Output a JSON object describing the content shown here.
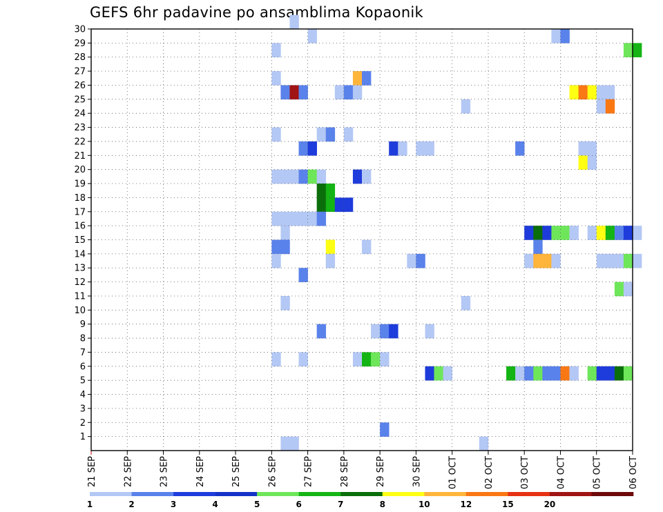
{
  "chart_data": {
    "type": "heatmap",
    "title": "GEFS 6hr padavine po ansamblima Kopaonik",
    "xlabel": "",
    "ylabel": "",
    "x_unit": "6-hour step",
    "x_tick_labels": [
      "21 SEP",
      "22 SEP",
      "23 SEP",
      "24 SEP",
      "25 SEP",
      "26 SEP",
      "27 SEP",
      "28 SEP",
      "29 SEP",
      "30 SEP",
      "01 OCT",
      "02 OCT",
      "03 OCT",
      "04 OCT",
      "05 OCT",
      "06 OCT"
    ],
    "y_range": [
      0,
      30
    ],
    "y_tick_labels": [
      "1",
      "2",
      "3",
      "4",
      "5",
      "6",
      "7",
      "8",
      "9",
      "10",
      "11",
      "12",
      "13",
      "14",
      "15",
      "16",
      "17",
      "18",
      "19",
      "20",
      "21",
      "22",
      "23",
      "24",
      "25",
      "26",
      "27",
      "28",
      "29",
      "30"
    ],
    "grid": true,
    "colorbar": {
      "levels": [
        "1",
        "2",
        "3",
        "4",
        "5",
        "6",
        "7",
        "8",
        "10",
        "12",
        "15",
        "20"
      ],
      "colors": [
        "#b4c8f5",
        "#5a82eb",
        "#1e3cdc",
        "#1432c8",
        "#6ee65a",
        "#14b414",
        "#0a6e0a",
        "#ffff14",
        "#ffb43c",
        "#fa7814",
        "#e63214",
        "#a01414",
        "#6e0a0a"
      ]
    },
    "cells": [
      {
        "m": 30,
        "t": 22,
        "c": 0
      },
      {
        "m": 29,
        "t": 24,
        "c": 0
      },
      {
        "m": 29,
        "t": 51,
        "c": 0
      },
      {
        "m": 29,
        "t": 52,
        "c": 1
      },
      {
        "m": 28,
        "t": 20,
        "c": 0
      },
      {
        "m": 28,
        "t": 59,
        "c": 4
      },
      {
        "m": 28,
        "t": 60,
        "c": 5
      },
      {
        "m": 26,
        "t": 20,
        "c": 0
      },
      {
        "m": 26,
        "t": 29,
        "c": 8
      },
      {
        "m": 26,
        "t": 30,
        "c": 1
      },
      {
        "m": 25,
        "t": 21,
        "c": 1
      },
      {
        "m": 25,
        "t": 22,
        "c": 11
      },
      {
        "m": 25,
        "t": 23,
        "c": 1
      },
      {
        "m": 25,
        "t": 27,
        "c": 0
      },
      {
        "m": 25,
        "t": 28,
        "c": 1
      },
      {
        "m": 25,
        "t": 29,
        "c": 0
      },
      {
        "m": 25,
        "t": 53,
        "c": 7
      },
      {
        "m": 25,
        "t": 54,
        "c": 9
      },
      {
        "m": 25,
        "t": 55,
        "c": 7
      },
      {
        "m": 25,
        "t": 56,
        "c": 0
      },
      {
        "m": 25,
        "t": 57,
        "c": 0
      },
      {
        "m": 24,
        "t": 41,
        "c": 0
      },
      {
        "m": 24,
        "t": 56,
        "c": 0
      },
      {
        "m": 24,
        "t": 57,
        "c": 9
      },
      {
        "m": 22,
        "t": 20,
        "c": 0
      },
      {
        "m": 22,
        "t": 25,
        "c": 0
      },
      {
        "m": 22,
        "t": 26,
        "c": 1
      },
      {
        "m": 22,
        "t": 28,
        "c": 0
      },
      {
        "m": 21,
        "t": 23,
        "c": 1
      },
      {
        "m": 21,
        "t": 24,
        "c": 2
      },
      {
        "m": 21,
        "t": 33,
        "c": 2
      },
      {
        "m": 21,
        "t": 34,
        "c": 0
      },
      {
        "m": 21,
        "t": 36,
        "c": 0
      },
      {
        "m": 21,
        "t": 37,
        "c": 0
      },
      {
        "m": 21,
        "t": 47,
        "c": 1
      },
      {
        "m": 21,
        "t": 54,
        "c": 0
      },
      {
        "m": 21,
        "t": 55,
        "c": 0
      },
      {
        "m": 20,
        "t": 54,
        "c": 7
      },
      {
        "m": 20,
        "t": 55,
        "c": 0
      },
      {
        "m": 19,
        "t": 20,
        "c": 0
      },
      {
        "m": 19,
        "t": 21,
        "c": 0
      },
      {
        "m": 19,
        "t": 22,
        "c": 0
      },
      {
        "m": 19,
        "t": 23,
        "c": 1
      },
      {
        "m": 19,
        "t": 24,
        "c": 4
      },
      {
        "m": 19,
        "t": 25,
        "c": 0
      },
      {
        "m": 19,
        "t": 29,
        "c": 2
      },
      {
        "m": 19,
        "t": 30,
        "c": 0
      },
      {
        "m": 18,
        "t": 25,
        "c": 6
      },
      {
        "m": 18,
        "t": 26,
        "c": 5
      },
      {
        "m": 17,
        "t": 25,
        "c": 6
      },
      {
        "m": 17,
        "t": 26,
        "c": 5
      },
      {
        "m": 17,
        "t": 27,
        "c": 2
      },
      {
        "m": 17,
        "t": 28,
        "c": 2
      },
      {
        "m": 16,
        "t": 20,
        "c": 0
      },
      {
        "m": 16,
        "t": 21,
        "c": 0
      },
      {
        "m": 16,
        "t": 22,
        "c": 0
      },
      {
        "m": 16,
        "t": 23,
        "c": 0
      },
      {
        "m": 16,
        "t": 24,
        "c": 0
      },
      {
        "m": 16,
        "t": 25,
        "c": 1
      },
      {
        "m": 15,
        "t": 21,
        "c": 0
      },
      {
        "m": 15,
        "t": 48,
        "c": 2
      },
      {
        "m": 15,
        "t": 49,
        "c": 6
      },
      {
        "m": 15,
        "t": 50,
        "c": 2
      },
      {
        "m": 15,
        "t": 51,
        "c": 4
      },
      {
        "m": 15,
        "t": 52,
        "c": 4
      },
      {
        "m": 15,
        "t": 53,
        "c": 0
      },
      {
        "m": 15,
        "t": 55,
        "c": 0
      },
      {
        "m": 15,
        "t": 56,
        "c": 7
      },
      {
        "m": 15,
        "t": 57,
        "c": 5
      },
      {
        "m": 15,
        "t": 58,
        "c": 1
      },
      {
        "m": 15,
        "t": 59,
        "c": 2
      },
      {
        "m": 15,
        "t": 60,
        "c": 0
      },
      {
        "m": 14,
        "t": 20,
        "c": 1
      },
      {
        "m": 14,
        "t": 21,
        "c": 1
      },
      {
        "m": 14,
        "t": 26,
        "c": 7
      },
      {
        "m": 14,
        "t": 30,
        "c": 0
      },
      {
        "m": 14,
        "t": 49,
        "c": 1
      },
      {
        "m": 13,
        "t": 20,
        "c": 0
      },
      {
        "m": 13,
        "t": 26,
        "c": 0
      },
      {
        "m": 13,
        "t": 35,
        "c": 0
      },
      {
        "m": 13,
        "t": 36,
        "c": 1
      },
      {
        "m": 13,
        "t": 48,
        "c": 0
      },
      {
        "m": 13,
        "t": 49,
        "c": 8
      },
      {
        "m": 13,
        "t": 50,
        "c": 8
      },
      {
        "m": 13,
        "t": 51,
        "c": 0
      },
      {
        "m": 13,
        "t": 56,
        "c": 0
      },
      {
        "m": 13,
        "t": 57,
        "c": 0
      },
      {
        "m": 13,
        "t": 58,
        "c": 0
      },
      {
        "m": 13,
        "t": 59,
        "c": 4
      },
      {
        "m": 13,
        "t": 60,
        "c": 0
      },
      {
        "m": 12,
        "t": 23,
        "c": 1
      },
      {
        "m": 11,
        "t": 58,
        "c": 4
      },
      {
        "m": 11,
        "t": 59,
        "c": 0
      },
      {
        "m": 10,
        "t": 21,
        "c": 0
      },
      {
        "m": 10,
        "t": 41,
        "c": 0
      },
      {
        "m": 8,
        "t": 25,
        "c": 1
      },
      {
        "m": 8,
        "t": 31,
        "c": 0
      },
      {
        "m": 8,
        "t": 32,
        "c": 1
      },
      {
        "m": 8,
        "t": 33,
        "c": 2
      },
      {
        "m": 8,
        "t": 37,
        "c": 0
      },
      {
        "m": 6,
        "t": 20,
        "c": 0
      },
      {
        "m": 6,
        "t": 23,
        "c": 0
      },
      {
        "m": 6,
        "t": 29,
        "c": 0
      },
      {
        "m": 6,
        "t": 30,
        "c": 5
      },
      {
        "m": 6,
        "t": 31,
        "c": 4
      },
      {
        "m": 6,
        "t": 32,
        "c": 0
      },
      {
        "m": 5,
        "t": 37,
        "c": 2
      },
      {
        "m": 5,
        "t": 38,
        "c": 4
      },
      {
        "m": 5,
        "t": 39,
        "c": 0
      },
      {
        "m": 5,
        "t": 46,
        "c": 5
      },
      {
        "m": 5,
        "t": 47,
        "c": 0
      },
      {
        "m": 5,
        "t": 48,
        "c": 1
      },
      {
        "m": 5,
        "t": 49,
        "c": 4
      },
      {
        "m": 5,
        "t": 50,
        "c": 1
      },
      {
        "m": 5,
        "t": 51,
        "c": 1
      },
      {
        "m": 5,
        "t": 52,
        "c": 9
      },
      {
        "m": 5,
        "t": 53,
        "c": 0
      },
      {
        "m": 5,
        "t": 55,
        "c": 4
      },
      {
        "m": 5,
        "t": 56,
        "c": 2
      },
      {
        "m": 5,
        "t": 57,
        "c": 2
      },
      {
        "m": 5,
        "t": 58,
        "c": 6
      },
      {
        "m": 5,
        "t": 59,
        "c": 4
      },
      {
        "m": 1,
        "t": 32,
        "c": 1
      },
      {
        "m": 0,
        "t": 21,
        "c": 0
      },
      {
        "m": 0,
        "t": 22,
        "c": 0
      },
      {
        "m": 0,
        "t": 43,
        "c": 0
      }
    ]
  }
}
